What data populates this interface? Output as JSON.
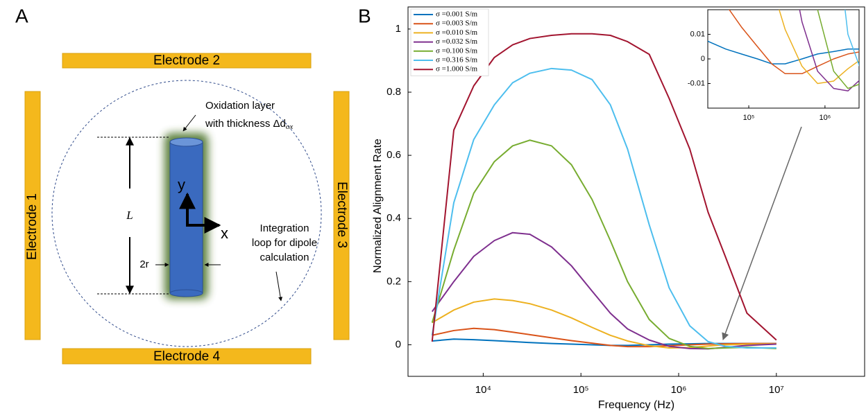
{
  "panel_a": {
    "label": "A",
    "electrodes": [
      "Electrode 1",
      "Electrode 2",
      "Electrode 3",
      "Electrode 4"
    ],
    "oxidation_label": {
      "line1": "Oxidation layer",
      "line2": "with thickness Δd",
      "subscript": "ox"
    },
    "length_label": "L",
    "radius_label": "2r",
    "axis_y": "y",
    "axis_x": "x",
    "loop_label": [
      "Integration",
      "loop for dipole",
      "calculation"
    ]
  },
  "chart_data": {
    "type": "line",
    "panel_label": "B",
    "x_label": "Frequency (Hz)",
    "y_label": "Normalized Alignment Rate",
    "log_x": true,
    "legend": "upper left",
    "xlim": [
      1700,
      80000000
    ],
    "ylim": [
      -0.1,
      1.07
    ],
    "xticks": [
      {
        "value": 10000,
        "label": "10⁴"
      },
      {
        "value": 100000,
        "label": "10⁵"
      },
      {
        "value": 1000000,
        "label": "10⁶"
      },
      {
        "value": 10000000,
        "label": "10⁷"
      }
    ],
    "yticks": [
      0,
      0.2,
      0.4,
      0.6,
      0.8,
      1
    ],
    "x": [
      3000,
      5000,
      8000,
      13000,
      20000,
      30000,
      50000,
      80000,
      130000,
      200000,
      300000,
      500000,
      800000,
      1300000,
      2000000,
      3000000,
      5000000,
      10000000
    ],
    "series": [
      {
        "name": "σ =0.001 S/m",
        "color": "#0072bd",
        "values": [
          0.012,
          0.018,
          0.016,
          0.013,
          0.01,
          0.007,
          0.004,
          0.002,
          0,
          -0.002,
          -0.002,
          0,
          0.002,
          0.003,
          0.004,
          0.004,
          0.004,
          0.004
        ]
      },
      {
        "name": "σ =0.003 S/m",
        "color": "#d95319",
        "values": [
          0.03,
          0.045,
          0.052,
          0.048,
          0.04,
          0.032,
          0.022,
          0.013,
          0.005,
          -0.002,
          -0.006,
          -0.006,
          -0.003,
          0,
          0.002,
          0.003,
          0.004,
          0.004
        ]
      },
      {
        "name": "σ =0.010 S/m",
        "color": "#edb120",
        "values": [
          0.07,
          0.11,
          0.135,
          0.145,
          0.14,
          0.13,
          0.11,
          0.085,
          0.055,
          0.03,
          0.012,
          -0.003,
          -0.01,
          -0.009,
          -0.004,
          0,
          0.002,
          0.003
        ]
      },
      {
        "name": "σ =0.032 S/m",
        "color": "#7e2f8e",
        "values": [
          0.105,
          0.2,
          0.28,
          0.33,
          0.355,
          0.35,
          0.31,
          0.25,
          0.17,
          0.1,
          0.05,
          0.015,
          -0.005,
          -0.012,
          -0.013,
          -0.008,
          -0.002,
          0.002
        ]
      },
      {
        "name": "σ =0.100 S/m",
        "color": "#77ac30",
        "values": [
          0.07,
          0.3,
          0.48,
          0.58,
          0.63,
          0.648,
          0.63,
          0.57,
          0.46,
          0.33,
          0.2,
          0.08,
          0.02,
          -0.005,
          -0.012,
          -0.01,
          -0.008,
          -0.012
        ]
      },
      {
        "name": "σ =0.316 S/m",
        "color": "#4dbeee",
        "values": [
          0.03,
          0.45,
          0.65,
          0.76,
          0.83,
          0.86,
          0.875,
          0.87,
          0.84,
          0.76,
          0.62,
          0.38,
          0.18,
          0.06,
          0.01,
          -0.005,
          -0.01,
          -0.01
        ]
      },
      {
        "name": "σ =1.000 S/m",
        "color": "#a2142f",
        "values": [
          0.01,
          0.68,
          0.82,
          0.91,
          0.95,
          0.97,
          0.98,
          0.985,
          0.985,
          0.98,
          0.96,
          0.92,
          0.78,
          0.62,
          0.42,
          0.28,
          0.1,
          0.015
        ]
      }
    ],
    "inset": {
      "xlim": [
        29000,
        2800000
      ],
      "ylim": [
        -0.02,
        0.02
      ],
      "xticks": [
        {
          "value": 100000,
          "label": "10⁵"
        },
        {
          "value": 1000000,
          "label": "10⁶"
        }
      ],
      "yticks": [
        0.01,
        0,
        -0.01
      ]
    }
  }
}
